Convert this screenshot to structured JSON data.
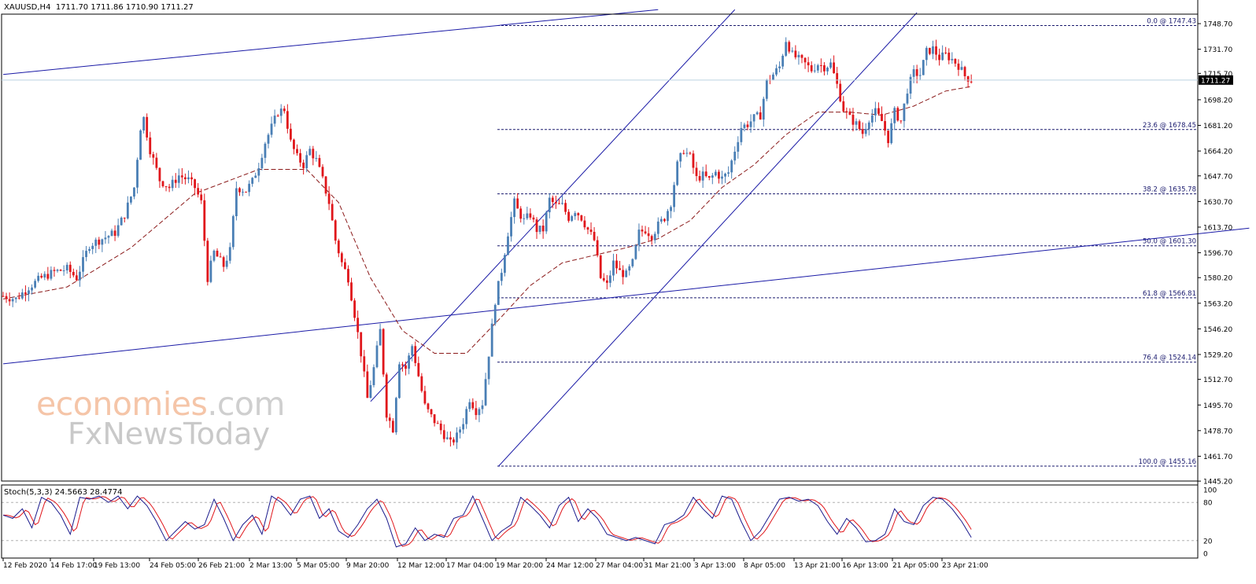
{
  "header": {
    "symbol": "XAUUSD,H4",
    "ohlc": "1711.70 1711.86 1710.90 1711.27"
  },
  "watermark": {
    "line1_a": "economies",
    "line1_b": ".com",
    "line2": "FxNewsToday",
    "colors": {
      "orange": "#f5c5a8",
      "gray": "#c9c9c9"
    }
  },
  "colors": {
    "bull": "#4a7fb5",
    "bear": "#e0161b",
    "trendline": "#1a1aa6",
    "fib": "#1a1a6e",
    "ma": "#8b1a1a",
    "stoch_main": "#1a1a8c",
    "stoch_signal": "#e0161b",
    "grid_level": "#b0b0b0"
  },
  "chart_data": {
    "type": "candlestick",
    "ylim": [
      1445.16,
      1757.0
    ],
    "current_price": "1711.27",
    "y_ticks": [
      "1748.70",
      "1731.70",
      "1715.70",
      "1698.20",
      "1681.20",
      "1664.20",
      "1647.70",
      "1630.70",
      "1613.70",
      "1596.70",
      "1580.20",
      "1563.20",
      "1546.20",
      "1529.20",
      "1512.70",
      "1495.70",
      "1478.70",
      "1461.70",
      "1445.20"
    ],
    "x_ticks": [
      "12 Feb 2020",
      "14 Feb 17:00",
      "19 Feb 13:00",
      "24 Feb 05:00",
      "26 Feb 21:00",
      "2 Mar 13:00",
      "5 Mar 05:00",
      "9 Mar 20:00",
      "12 Mar 12:00",
      "17 Mar 04:00",
      "19 Mar 20:00",
      "24 Mar 12:00",
      "27 Mar 04:00",
      "31 Mar 21:00",
      "3 Apr 13:00",
      "8 Apr 05:00",
      "13 Apr 21:00",
      "16 Apr 13:00",
      "21 Apr 05:00",
      "23 Apr 21:00"
    ],
    "fib_levels": [
      {
        "label": "0.0 @ 1747.43",
        "price": 1747.43
      },
      {
        "label": "23.6 @ 1678.45",
        "price": 1678.45
      },
      {
        "label": "38.2 @ 1635.78",
        "price": 1635.78
      },
      {
        "label": "50.0 @ 1601.30",
        "price": 1601.3
      },
      {
        "label": "61.8 @ 1566.81",
        "price": 1566.81
      },
      {
        "label": "76.4 @ 1524.14",
        "price": 1524.14
      },
      {
        "label": "100.0 @ 1455.16",
        "price": 1455.16
      }
    ],
    "anchors": [
      [
        0,
        1568
      ],
      [
        4,
        1566
      ],
      [
        8,
        1574
      ],
      [
        12,
        1580
      ],
      [
        16,
        1584
      ],
      [
        20,
        1586
      ],
      [
        23,
        1580
      ],
      [
        27,
        1602
      ],
      [
        31,
        1606
      ],
      [
        35,
        1610
      ],
      [
        38,
        1622
      ],
      [
        41,
        1640
      ],
      [
        43,
        1680
      ],
      [
        44,
        1686
      ],
      [
        46,
        1665
      ],
      [
        49,
        1645
      ],
      [
        52,
        1640
      ],
      [
        55,
        1648
      ],
      [
        58,
        1645
      ],
      [
        60,
        1640
      ],
      [
        62,
        1630
      ],
      [
        64,
        1580
      ],
      [
        66,
        1597
      ],
      [
        69,
        1588
      ],
      [
        71,
        1598
      ],
      [
        73,
        1640
      ],
      [
        76,
        1638
      ],
      [
        78,
        1644
      ],
      [
        80,
        1655
      ],
      [
        82,
        1670
      ],
      [
        84,
        1680
      ],
      [
        86,
        1690
      ],
      [
        88,
        1692
      ],
      [
        90,
        1670
      ],
      [
        92,
        1660
      ],
      [
        94,
        1655
      ],
      [
        96,
        1665
      ],
      [
        98,
        1658
      ],
      [
        100,
        1645
      ],
      [
        102,
        1630
      ],
      [
        104,
        1605
      ],
      [
        106,
        1590
      ],
      [
        108,
        1580
      ],
      [
        110,
        1556
      ],
      [
        112,
        1530
      ],
      [
        114,
        1500
      ],
      [
        116,
        1520
      ],
      [
        118,
        1545
      ],
      [
        120,
        1490
      ],
      [
        122,
        1480
      ],
      [
        124,
        1525
      ],
      [
        126,
        1520
      ],
      [
        128,
        1535
      ],
      [
        130,
        1515
      ],
      [
        132,
        1495
      ],
      [
        134,
        1488
      ],
      [
        136,
        1482
      ],
      [
        138,
        1476
      ],
      [
        140,
        1470
      ],
      [
        142,
        1475
      ],
      [
        144,
        1485
      ],
      [
        146,
        1500
      ],
      [
        148,
        1492
      ],
      [
        150,
        1497
      ],
      [
        152,
        1530
      ],
      [
        154,
        1565
      ],
      [
        156,
        1585
      ],
      [
        158,
        1610
      ],
      [
        160,
        1630
      ],
      [
        161,
        1625
      ],
      [
        163,
        1618
      ],
      [
        165,
        1622
      ],
      [
        167,
        1612
      ],
      [
        169,
        1612
      ],
      [
        171,
        1632
      ],
      [
        173,
        1628
      ],
      [
        175,
        1628
      ],
      [
        177,
        1620
      ],
      [
        179,
        1625
      ],
      [
        181,
        1620
      ],
      [
        183,
        1612
      ],
      [
        185,
        1605
      ],
      [
        187,
        1580
      ],
      [
        189,
        1575
      ],
      [
        191,
        1590
      ],
      [
        193,
        1584
      ],
      [
        195,
        1582
      ],
      [
        197,
        1590
      ],
      [
        199,
        1610
      ],
      [
        201,
        1612
      ],
      [
        203,
        1608
      ],
      [
        205,
        1615
      ],
      [
        207,
        1620
      ],
      [
        209,
        1630
      ],
      [
        211,
        1655
      ],
      [
        213,
        1665
      ],
      [
        215,
        1660
      ],
      [
        217,
        1646
      ],
      [
        219,
        1648
      ],
      [
        221,
        1645
      ],
      [
        223,
        1650
      ],
      [
        225,
        1646
      ],
      [
        227,
        1650
      ],
      [
        229,
        1665
      ],
      [
        231,
        1680
      ],
      [
        233,
        1682
      ],
      [
        235,
        1686
      ],
      [
        237,
        1688
      ],
      [
        239,
        1710
      ],
      [
        241,
        1715
      ],
      [
        243,
        1720
      ],
      [
        245,
        1738
      ],
      [
        247,
        1728
      ],
      [
        249,
        1725
      ],
      [
        251,
        1722
      ],
      [
        253,
        1718
      ],
      [
        255,
        1722
      ],
      [
        257,
        1720
      ],
      [
        259,
        1722
      ],
      [
        261,
        1708
      ],
      [
        263,
        1692
      ],
      [
        265,
        1686
      ],
      [
        267,
        1682
      ],
      [
        269,
        1676
      ],
      [
        271,
        1686
      ],
      [
        273,
        1690
      ],
      [
        275,
        1684
      ],
      [
        277,
        1672
      ],
      [
        279,
        1690
      ],
      [
        281,
        1684
      ],
      [
        283,
        1705
      ],
      [
        285,
        1716
      ],
      [
        287,
        1715
      ],
      [
        289,
        1730
      ],
      [
        291,
        1732
      ],
      [
        293,
        1726
      ],
      [
        295,
        1728
      ],
      [
        297,
        1725
      ],
      [
        299,
        1721
      ],
      [
        301,
        1714
      ],
      [
        303,
        1711.27
      ]
    ],
    "ma_anchors": [
      [
        0,
        1566
      ],
      [
        20,
        1574
      ],
      [
        40,
        1600
      ],
      [
        60,
        1636
      ],
      [
        80,
        1652
      ],
      [
        95,
        1652
      ],
      [
        105,
        1630
      ],
      [
        115,
        1580
      ],
      [
        125,
        1545
      ],
      [
        135,
        1530
      ],
      [
        145,
        1530
      ],
      [
        155,
        1552
      ],
      [
        165,
        1575
      ],
      [
        175,
        1590
      ],
      [
        185,
        1595
      ],
      [
        195,
        1600
      ],
      [
        205,
        1606
      ],
      [
        215,
        1618
      ],
      [
        225,
        1640
      ],
      [
        235,
        1655
      ],
      [
        245,
        1675
      ],
      [
        255,
        1690
      ],
      [
        265,
        1690
      ],
      [
        275,
        1688
      ],
      [
        285,
        1694
      ],
      [
        295,
        1704
      ],
      [
        303,
        1707
      ]
    ],
    "trendlines": [
      {
        "from": [
          0,
          1715
        ],
        "to": [
          205,
          1758
        ]
      },
      {
        "from": [
          0,
          1523
        ],
        "to": [
          390,
          1613
        ]
      },
      {
        "from": [
          115,
          1498
        ],
        "to": [
          229,
          1758
        ]
      },
      {
        "from": [
          155,
          1455
        ],
        "to": [
          286,
          1756
        ]
      }
    ],
    "stochastic": {
      "label": "Stoch(5,3,3) 24.5663 28.4774",
      "ylim": [
        0,
        100
      ],
      "y_ticks": [
        "100",
        "80",
        "20",
        "0"
      ],
      "levels": [
        80,
        20
      ],
      "main_anchors": [
        [
          0,
          60
        ],
        [
          3,
          55
        ],
        [
          6,
          70
        ],
        [
          9,
          40
        ],
        [
          12,
          88
        ],
        [
          15,
          80
        ],
        [
          18,
          60
        ],
        [
          21,
          30
        ],
        [
          24,
          88
        ],
        [
          27,
          85
        ],
        [
          30,
          90
        ],
        [
          33,
          80
        ],
        [
          36,
          90
        ],
        [
          39,
          70
        ],
        [
          42,
          90
        ],
        [
          45,
          75
        ],
        [
          48,
          50
        ],
        [
          51,
          20
        ],
        [
          54,
          35
        ],
        [
          57,
          50
        ],
        [
          60,
          38
        ],
        [
          63,
          45
        ],
        [
          66,
          85
        ],
        [
          69,
          55
        ],
        [
          72,
          20
        ],
        [
          75,
          45
        ],
        [
          78,
          60
        ],
        [
          81,
          30
        ],
        [
          84,
          90
        ],
        [
          87,
          80
        ],
        [
          90,
          60
        ],
        [
          93,
          85
        ],
        [
          96,
          90
        ],
        [
          99,
          55
        ],
        [
          102,
          70
        ],
        [
          105,
          35
        ],
        [
          108,
          25
        ],
        [
          111,
          45
        ],
        [
          114,
          70
        ],
        [
          117,
          85
        ],
        [
          120,
          55
        ],
        [
          123,
          10
        ],
        [
          126,
          15
        ],
        [
          129,
          40
        ],
        [
          132,
          20
        ],
        [
          135,
          30
        ],
        [
          138,
          25
        ],
        [
          141,
          55
        ],
        [
          144,
          60
        ],
        [
          147,
          90
        ],
        [
          150,
          55
        ],
        [
          153,
          20
        ],
        [
          156,
          35
        ],
        [
          159,
          45
        ],
        [
          162,
          88
        ],
        [
          165,
          75
        ],
        [
          168,
          60
        ],
        [
          171,
          40
        ],
        [
          174,
          75
        ],
        [
          177,
          88
        ],
        [
          180,
          50
        ],
        [
          183,
          70
        ],
        [
          186,
          55
        ],
        [
          189,
          30
        ],
        [
          192,
          25
        ],
        [
          195,
          20
        ],
        [
          198,
          25
        ],
        [
          201,
          20
        ],
        [
          204,
          15
        ],
        [
          207,
          45
        ],
        [
          210,
          50
        ],
        [
          213,
          60
        ],
        [
          216,
          88
        ],
        [
          219,
          70
        ],
        [
          222,
          55
        ],
        [
          225,
          90
        ],
        [
          228,
          85
        ],
        [
          231,
          50
        ],
        [
          234,
          20
        ],
        [
          237,
          35
        ],
        [
          240,
          60
        ],
        [
          243,
          85
        ],
        [
          246,
          88
        ],
        [
          249,
          82
        ],
        [
          252,
          85
        ],
        [
          255,
          75
        ],
        [
          258,
          50
        ],
        [
          261,
          30
        ],
        [
          264,
          55
        ],
        [
          267,
          40
        ],
        [
          270,
          18
        ],
        [
          273,
          20
        ],
        [
          276,
          30
        ],
        [
          279,
          70
        ],
        [
          282,
          50
        ],
        [
          285,
          45
        ],
        [
          288,
          75
        ],
        [
          291,
          88
        ],
        [
          294,
          85
        ],
        [
          297,
          70
        ],
        [
          300,
          50
        ],
        [
          303,
          25
        ]
      ]
    }
  }
}
